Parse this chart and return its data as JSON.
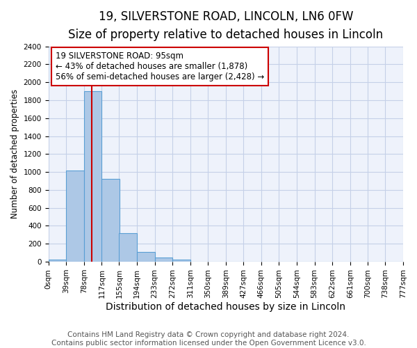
{
  "title": "19, SILVERSTONE ROAD, LINCOLN, LN6 0FW",
  "subtitle": "Size of property relative to detached houses in Lincoln",
  "xlabel": "Distribution of detached houses by size in Lincoln",
  "ylabel": "Number of detached properties",
  "footer_lines": [
    "Contains HM Land Registry data © Crown copyright and database right 2024.",
    "Contains public sector information licensed under the Open Government Licence v3.0."
  ],
  "bin_edges": [
    0,
    39,
    78,
    117,
    155,
    194,
    233,
    272,
    311,
    350,
    389,
    427,
    466,
    505,
    544,
    583,
    622,
    661,
    700,
    738,
    777
  ],
  "bin_labels": [
    "0sqm",
    "39sqm",
    "78sqm",
    "117sqm",
    "155sqm",
    "194sqm",
    "233sqm",
    "272sqm",
    "311sqm",
    "350sqm",
    "389sqm",
    "427sqm",
    "466sqm",
    "505sqm",
    "544sqm",
    "583sqm",
    "622sqm",
    "661sqm",
    "700sqm",
    "738sqm",
    "777sqm"
  ],
  "bar_heights": [
    25,
    1020,
    1900,
    920,
    315,
    110,
    50,
    25,
    0,
    0,
    0,
    0,
    0,
    0,
    0,
    0,
    0,
    0,
    0,
    0
  ],
  "bar_color": "#adc8e6",
  "bar_edge_color": "#5a9fd4",
  "property_line_x": 95,
  "property_line_color": "#cc0000",
  "annotation_title": "19 SILVERSTONE ROAD: 95sqm",
  "annotation_line1": "← 43% of detached houses are smaller (1,878)",
  "annotation_line2": "56% of semi-detached houses are larger (2,428) →",
  "ylim": [
    0,
    2400
  ],
  "yticks": [
    0,
    200,
    400,
    600,
    800,
    1000,
    1200,
    1400,
    1600,
    1800,
    2000,
    2200,
    2400
  ],
  "background_color": "#eef2fb",
  "grid_color": "#c5d0e8",
  "title_fontsize": 12,
  "subtitle_fontsize": 10,
  "xlabel_fontsize": 10,
  "ylabel_fontsize": 8.5,
  "tick_fontsize": 7.5,
  "annotation_fontsize": 8.5,
  "footer_fontsize": 7.5
}
